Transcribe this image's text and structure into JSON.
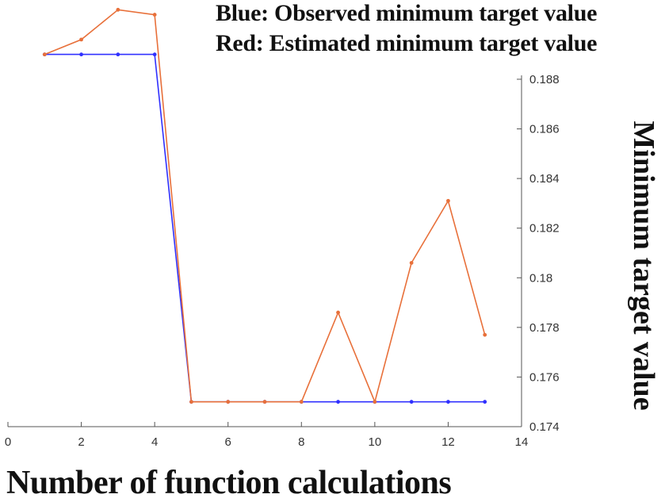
{
  "legend": {
    "blue": "Blue: Observed minimum target value",
    "red": "Red: Estimated minimum target value"
  },
  "chart_data": {
    "type": "line",
    "xlabel": "Number of function calculations",
    "ylabel": "Minimum target value",
    "xlim": [
      0,
      14
    ],
    "ylim": [
      0.174,
      0.1895
    ],
    "xticks": [
      0,
      2,
      4,
      6,
      8,
      10,
      12,
      14
    ],
    "xtick_labels": [
      "0",
      "2",
      "4",
      "6",
      "8",
      "10",
      "12",
      "14"
    ],
    "yticks": [
      0.174,
      0.176,
      0.178,
      0.18,
      0.182,
      0.184,
      0.186,
      0.188
    ],
    "ytick_labels": [
      "0.174",
      "0.176",
      "0.178",
      "0.18",
      "0.182",
      "0.184",
      "0.186",
      "0.188"
    ],
    "y_axis_position": "right",
    "grid": false,
    "legend_placement": "top-right",
    "series": [
      {
        "color": "#3030ff",
        "x": [
          1,
          2,
          3,
          4,
          5,
          6,
          7,
          8,
          9,
          10,
          11,
          12,
          13
        ],
        "y": [
          0.189,
          0.189,
          0.189,
          0.189,
          0.175,
          0.175,
          0.175,
          0.175,
          0.175,
          0.175,
          0.175,
          0.175,
          0.175
        ]
      },
      {
        "color": "#e8703a",
        "x": [
          1,
          2,
          3,
          4,
          5,
          6,
          7,
          8,
          9,
          10,
          11,
          12,
          13
        ],
        "y": [
          0.189,
          0.1896,
          0.1908,
          0.1906,
          0.175,
          0.175,
          0.175,
          0.175,
          0.1786,
          0.175,
          0.1806,
          0.1831,
          0.1777
        ]
      }
    ]
  }
}
